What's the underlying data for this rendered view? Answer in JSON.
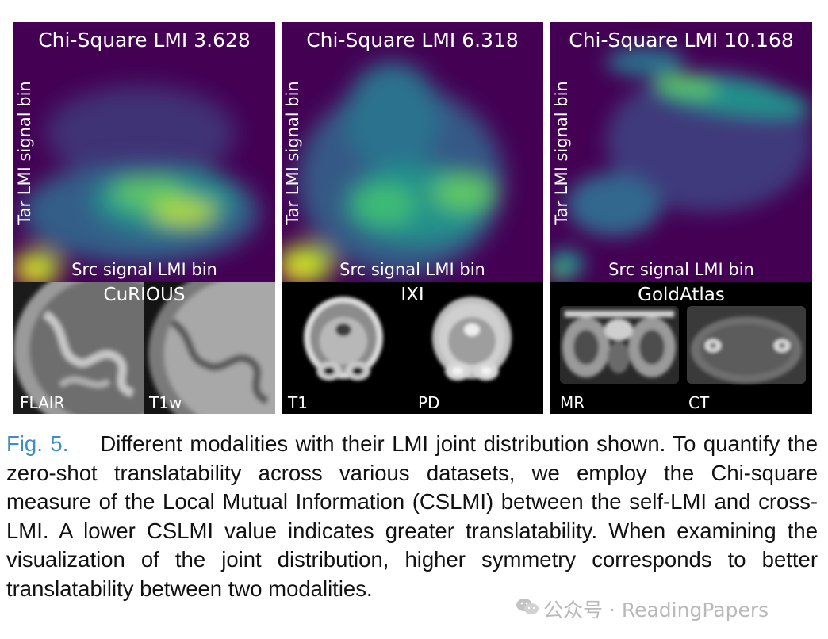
{
  "figure": {
    "panels": [
      {
        "title": "Chi-Square LMI 3.628",
        "xlabel": "Src signal LMI bin",
        "ylabel": "Tar LMI signal bin",
        "dataset": "CuRIOUS",
        "modalities": [
          "FLAIR",
          "T1w"
        ]
      },
      {
        "title": "Chi-Square LMI 6.318",
        "xlabel": "Src signal LMI bin",
        "ylabel": "Tar LMI signal bin",
        "dataset": "IXI",
        "modalities": [
          "T1",
          "PD"
        ]
      },
      {
        "title": "Chi-Square LMI 10.168",
        "xlabel": "Src signal LMI bin",
        "ylabel": "Tar LMI signal bin",
        "dataset": "GoldAtlas",
        "modalities": [
          "MR",
          "CT"
        ]
      }
    ]
  },
  "colors": {
    "heatmap_background": "#440154",
    "heatmap_mid": "#21918c",
    "heatmap_high": "#fde725",
    "figure_label": "#3b8fc4"
  },
  "chart_data": [
    {
      "type": "heatmap",
      "title": "Chi-Square LMI 3.628",
      "xlabel": "Src signal LMI bin",
      "ylabel": "Tar LMI signal bin",
      "colormap": "viridis",
      "grid": false,
      "legend": "none"
    },
    {
      "type": "heatmap",
      "title": "Chi-Square LMI 6.318",
      "xlabel": "Src signal LMI bin",
      "ylabel": "Tar LMI signal bin",
      "colormap": "viridis",
      "grid": false,
      "legend": "none"
    },
    {
      "type": "heatmap",
      "title": "Chi-Square LMI 10.168",
      "xlabel": "Src signal LMI bin",
      "ylabel": "Tar LMI signal bin",
      "colormap": "viridis",
      "grid": false,
      "legend": "none"
    }
  ],
  "caption": {
    "label": "Fig. 5.",
    "text": "Different modalities with their LMI joint distribution shown. To quantify the zero-shot translatability across various datasets, we employ the Chi-square measure of the Local Mutual Information (CSLMI) between the self-LMI and cross-LMI. A lower CSLMI value indicates greater translatability. When examining the visualization of the joint distribution, higher symmetry corresponds to better translatability between two modalities."
  },
  "watermark": {
    "icon": "wechat-icon",
    "text": "公众号 · ReadingPapers"
  }
}
